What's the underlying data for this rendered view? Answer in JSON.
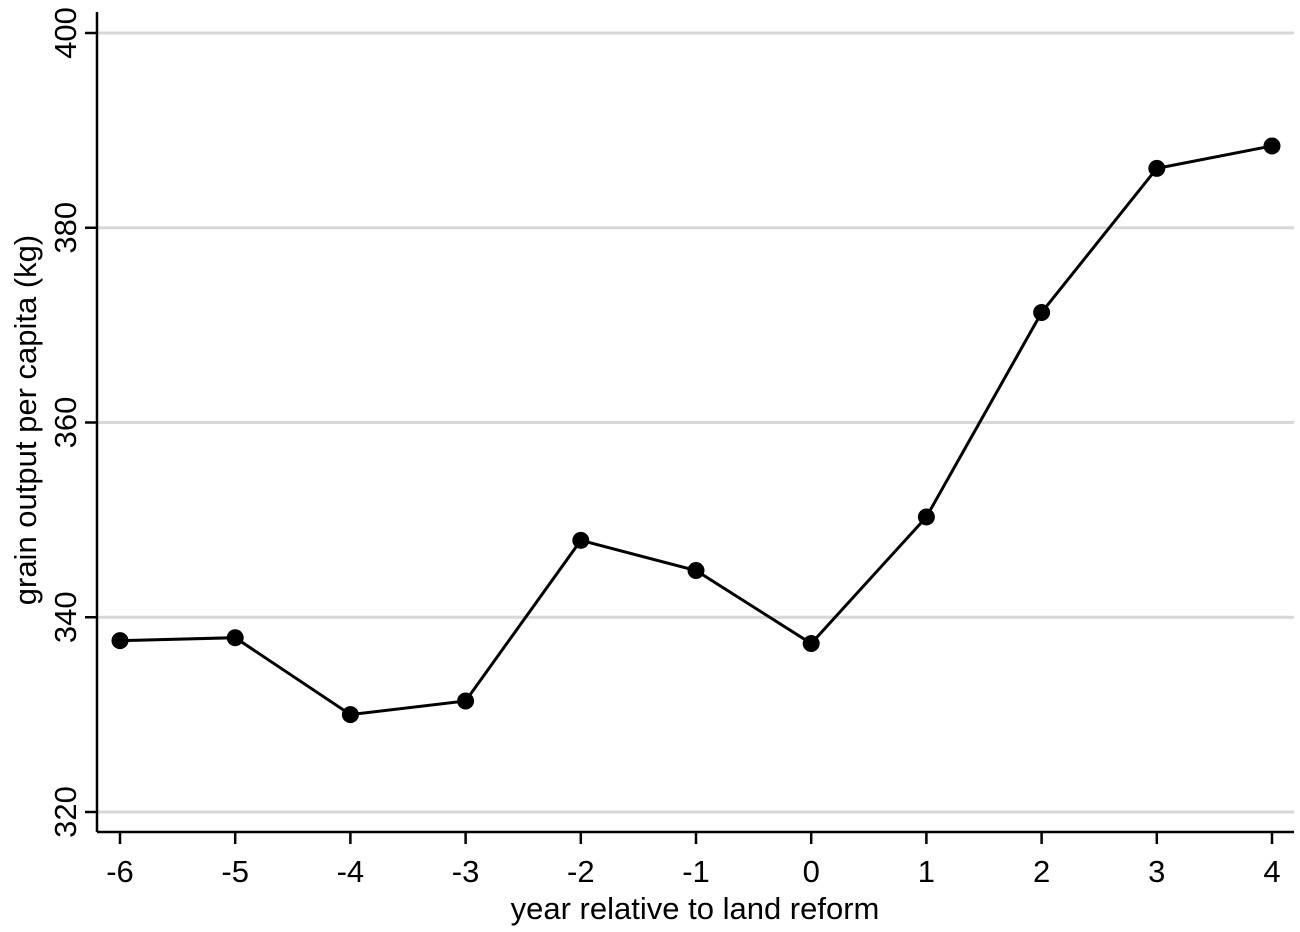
{
  "chart_data": {
    "type": "line",
    "title": "",
    "xlabel": "year relative to land reform",
    "ylabel": "grain output per capita (kg)",
    "x": [
      -6,
      -5,
      -4,
      -3,
      -2,
      -1,
      0,
      1,
      2,
      3,
      4
    ],
    "series": [
      {
        "values": [
          337.6,
          337.9,
          330.0,
          331.4,
          347.9,
          344.8,
          337.3,
          350.3,
          371.3,
          386.1,
          388.4
        ]
      }
    ],
    "xticks": [
      "-6",
      "-5",
      "-4",
      "-3",
      "-2",
      "-1",
      "0",
      "1",
      "2",
      "3",
      "4"
    ],
    "yticks": [
      "320",
      "340",
      "360",
      "380",
      "400"
    ],
    "xlim": [
      -6,
      4
    ],
    "ylim": [
      320,
      400
    ],
    "grid": "horizontal",
    "colors": {
      "line": "#000000",
      "marker": "#000000",
      "grid": "#d7d7d7"
    }
  }
}
